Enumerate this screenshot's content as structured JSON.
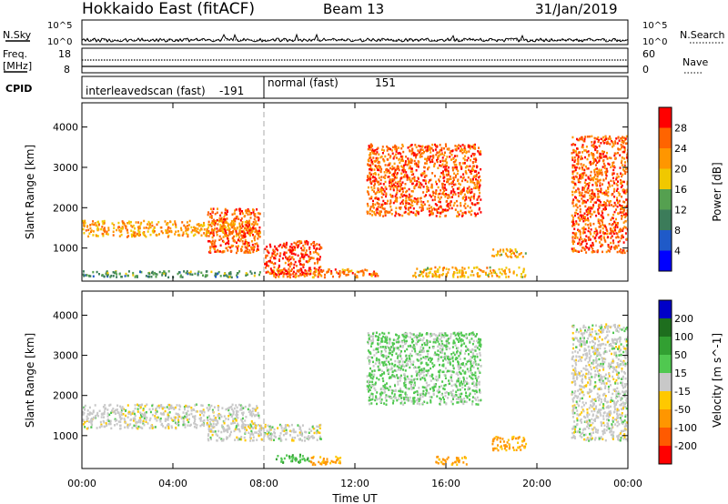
{
  "header": {
    "station": "Hokkaido East (fitACF)",
    "beam": "Beam 13",
    "date": "31/Jan/2019"
  },
  "nsky_panel": {
    "left_label": "N.Sky",
    "right_label": "N.Search",
    "left_ticks": [
      "10^5",
      "10^0"
    ],
    "right_ticks": [
      "10^5",
      "10^0"
    ]
  },
  "freq_panel": {
    "left_label_1": "Freq.",
    "left_label_2": "[MHz]",
    "left_ticks": [
      "18",
      "8"
    ],
    "right_label": "Nave",
    "right_ticks": [
      "60",
      "0"
    ]
  },
  "cpid_panel": {
    "label": "CPID",
    "modes": [
      {
        "name": "interleavedscan (fast)",
        "id": "-191"
      },
      {
        "name": "normal (fast)",
        "id": "151"
      }
    ]
  },
  "colors": {
    "power": [
      "#0000ff",
      "#1f5ac8",
      "#3c7c5a",
      "#55a050",
      "#f0c800",
      "#ff9600",
      "#ff6400",
      "#ff0000"
    ],
    "velocity": [
      "#ff0000",
      "#ff5a00",
      "#ff9600",
      "#ffc800",
      "#c8c8c8",
      "#50c850",
      "#32a032",
      "#1e6e1e",
      "#0000c8"
    ]
  },
  "chart_data": [
    {
      "type": "heatmap",
      "quantity": "Power",
      "xlabel": "",
      "ylabel": "Slant Range [km]",
      "xlim": [
        "00:00",
        "24:00"
      ],
      "ylim": [
        180,
        4600
      ],
      "y_ticks": [
        1000,
        2000,
        3000,
        4000
      ],
      "colorbar": {
        "label": "Power [dB]",
        "ticks": [
          4,
          8,
          12,
          16,
          20,
          24,
          28
        ],
        "range": [
          0,
          32
        ]
      },
      "echo_regions": [
        {
          "t_start": 0.0,
          "t_end": 7.8,
          "range_min": 1300,
          "range_max": 1700,
          "power": 22
        },
        {
          "t_start": 0.0,
          "t_end": 7.8,
          "range_min": 300,
          "range_max": 450,
          "power": 12
        },
        {
          "t_start": 5.5,
          "t_end": 7.8,
          "range_min": 900,
          "range_max": 2000,
          "power": 26
        },
        {
          "t_start": 8.0,
          "t_end": 10.5,
          "range_min": 350,
          "range_max": 1200,
          "power": 28
        },
        {
          "t_start": 8.0,
          "t_end": 13.0,
          "range_min": 300,
          "range_max": 500,
          "power": 24
        },
        {
          "t_start": 12.5,
          "t_end": 17.5,
          "range_min": 1800,
          "range_max": 3600,
          "power": 26
        },
        {
          "t_start": 14.5,
          "t_end": 19.5,
          "range_min": 300,
          "range_max": 550,
          "power": 20
        },
        {
          "t_start": 18.0,
          "t_end": 19.5,
          "range_min": 800,
          "range_max": 1000,
          "power": 20
        },
        {
          "t_start": 21.5,
          "t_end": 24.0,
          "range_min": 900,
          "range_max": 3800,
          "power": 26
        }
      ]
    },
    {
      "type": "heatmap",
      "quantity": "Velocity",
      "xlabel": "Time UT",
      "ylabel": "Slant Range [km]",
      "xlim": [
        "00:00",
        "24:00"
      ],
      "ylim": [
        180,
        4600
      ],
      "x_ticks": [
        "00:00",
        "04:00",
        "08:00",
        "12:00",
        "16:00",
        "20:00",
        "00:00"
      ],
      "y_ticks": [
        1000,
        2000,
        3000,
        4000
      ],
      "colorbar": {
        "label": "Velocity [m s^-1]",
        "ticks": [
          200,
          100,
          50,
          15,
          -15,
          -50,
          -100,
          -200
        ]
      },
      "echo_regions": [
        {
          "t_start": 0.0,
          "t_end": 7.8,
          "range_min": 1200,
          "range_max": 1800,
          "velocity": 0
        },
        {
          "t_start": 5.5,
          "t_end": 10.5,
          "range_min": 900,
          "range_max": 1300,
          "velocity": 0
        },
        {
          "t_start": 8.5,
          "t_end": 10.0,
          "range_min": 350,
          "range_max": 550,
          "velocity": 40
        },
        {
          "t_start": 10.0,
          "t_end": 11.5,
          "range_min": 300,
          "range_max": 500,
          "velocity": -60
        },
        {
          "t_start": 12.5,
          "t_end": 17.5,
          "range_min": 1800,
          "range_max": 3600,
          "velocity": 20
        },
        {
          "t_start": 15.5,
          "t_end": 17.0,
          "range_min": 300,
          "range_max": 500,
          "velocity": -60
        },
        {
          "t_start": 18.0,
          "t_end": 19.5,
          "range_min": 650,
          "range_max": 1000,
          "velocity": -60
        },
        {
          "t_start": 21.5,
          "t_end": 24.0,
          "range_min": 900,
          "range_max": 3800,
          "velocity": 0
        }
      ]
    }
  ]
}
